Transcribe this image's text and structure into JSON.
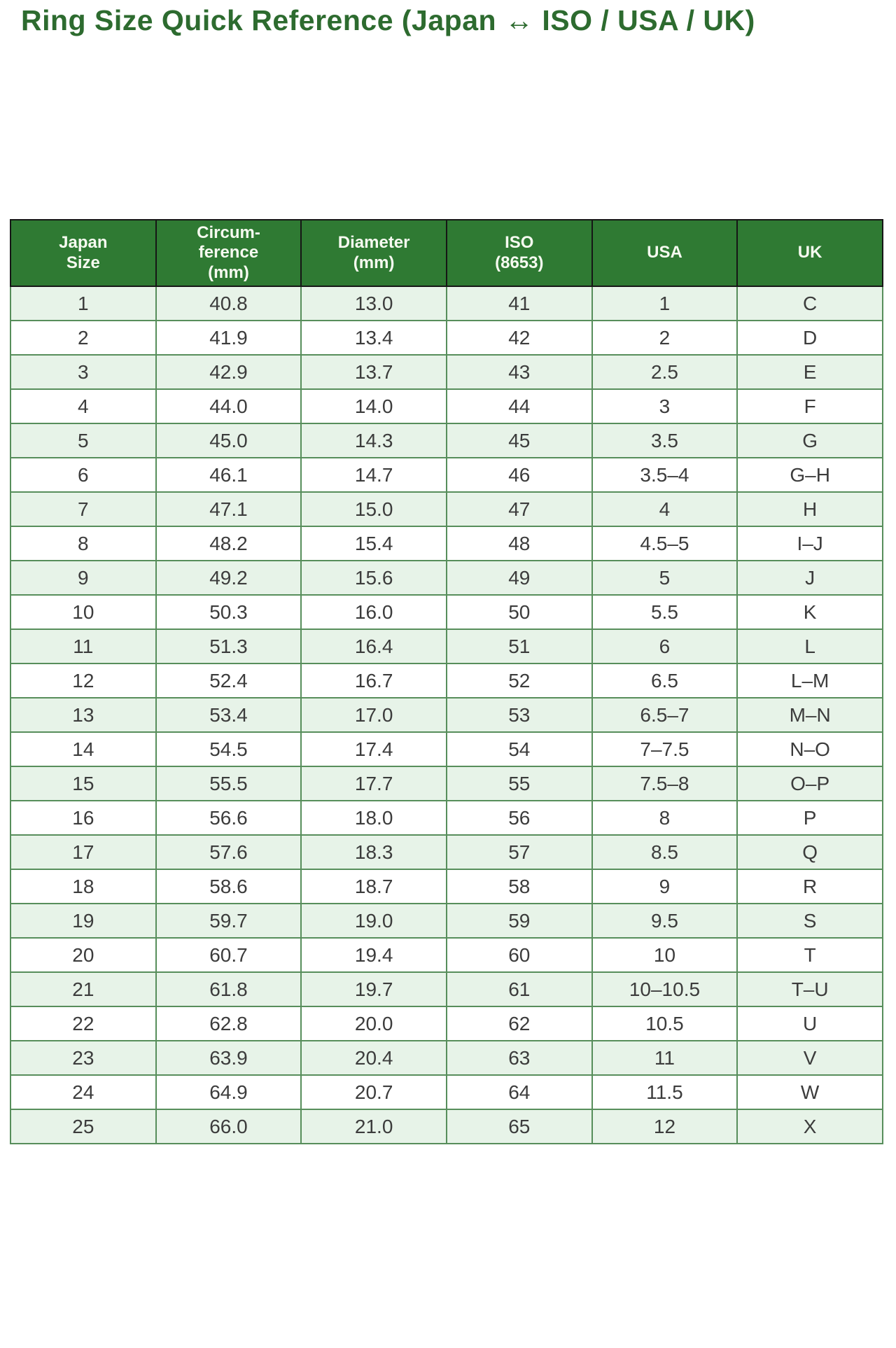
{
  "page": {
    "title": "Ring Size Quick Reference (Japan ↔ ISO / USA / UK)"
  },
  "colors": {
    "title_green": "#2d6b2f",
    "header_background": "#2f7a33",
    "header_text": "#f6faf0",
    "header_border": "#161616",
    "grid_border": "#578e5b",
    "row_alt_background": "#e7f3e8",
    "row_background": "#ffffff",
    "cell_text": "#3c3c3c",
    "page_background": "#ffffff"
  },
  "table": {
    "columns": [
      "Japan\nSize",
      "Circum-\nference\n(mm)",
      "Diameter\n(mm)",
      "ISO\n(8653)",
      "USA",
      "UK"
    ],
    "rows": [
      [
        "1",
        "40.8",
        "13.0",
        "41",
        "1",
        "C"
      ],
      [
        "2",
        "41.9",
        "13.4",
        "42",
        "2",
        "D"
      ],
      [
        "3",
        "42.9",
        "13.7",
        "43",
        "2.5",
        "E"
      ],
      [
        "4",
        "44.0",
        "14.0",
        "44",
        "3",
        "F"
      ],
      [
        "5",
        "45.0",
        "14.3",
        "45",
        "3.5",
        "G"
      ],
      [
        "6",
        "46.1",
        "14.7",
        "46",
        "3.5–4",
        "G–H"
      ],
      [
        "7",
        "47.1",
        "15.0",
        "47",
        "4",
        "H"
      ],
      [
        "8",
        "48.2",
        "15.4",
        "48",
        "4.5–5",
        "I–J"
      ],
      [
        "9",
        "49.2",
        "15.6",
        "49",
        "5",
        "J"
      ],
      [
        "10",
        "50.3",
        "16.0",
        "50",
        "5.5",
        "K"
      ],
      [
        "11",
        "51.3",
        "16.4",
        "51",
        "6",
        "L"
      ],
      [
        "12",
        "52.4",
        "16.7",
        "52",
        "6.5",
        "L–M"
      ],
      [
        "13",
        "53.4",
        "17.0",
        "53",
        "6.5–7",
        "M–N"
      ],
      [
        "14",
        "54.5",
        "17.4",
        "54",
        "7–7.5",
        "N–O"
      ],
      [
        "15",
        "55.5",
        "17.7",
        "55",
        "7.5–8",
        "O–P"
      ],
      [
        "16",
        "56.6",
        "18.0",
        "56",
        "8",
        "P"
      ],
      [
        "17",
        "57.6",
        "18.3",
        "57",
        "8.5",
        "Q"
      ],
      [
        "18",
        "58.6",
        "18.7",
        "58",
        "9",
        "R"
      ],
      [
        "19",
        "59.7",
        "19.0",
        "59",
        "9.5",
        "S"
      ],
      [
        "20",
        "60.7",
        "19.4",
        "60",
        "10",
        "T"
      ],
      [
        "21",
        "61.8",
        "19.7",
        "61",
        "10–10.5",
        "T–U"
      ],
      [
        "22",
        "62.8",
        "20.0",
        "62",
        "10.5",
        "U"
      ],
      [
        "23",
        "63.9",
        "20.4",
        "63",
        "11",
        "V"
      ],
      [
        "24",
        "64.9",
        "20.7",
        "64",
        "11.5",
        "W"
      ],
      [
        "25",
        "66.0",
        "21.0",
        "65",
        "12",
        "X"
      ]
    ]
  },
  "chart_data": {
    "type": "table",
    "title": "Ring Size Quick Reference (Japan ↔ ISO / USA / UK)",
    "columns": [
      "Japan Size",
      "Circum-ference (mm)",
      "Diameter (mm)",
      "ISO (8653)",
      "USA",
      "UK"
    ],
    "rows": [
      [
        "1",
        "40.8",
        "13.0",
        "41",
        "1",
        "C"
      ],
      [
        "2",
        "41.9",
        "13.4",
        "42",
        "2",
        "D"
      ],
      [
        "3",
        "42.9",
        "13.7",
        "43",
        "2.5",
        "E"
      ],
      [
        "4",
        "44.0",
        "14.0",
        "44",
        "3",
        "F"
      ],
      [
        "5",
        "45.0",
        "14.3",
        "45",
        "3.5",
        "G"
      ],
      [
        "6",
        "46.1",
        "14.7",
        "46",
        "3.5–4",
        "G–H"
      ],
      [
        "7",
        "47.1",
        "15.0",
        "47",
        "4",
        "H"
      ],
      [
        "8",
        "48.2",
        "15.4",
        "48",
        "4.5–5",
        "I–J"
      ],
      [
        "9",
        "49.2",
        "15.6",
        "49",
        "5",
        "J"
      ],
      [
        "10",
        "50.3",
        "16.0",
        "50",
        "5.5",
        "K"
      ],
      [
        "11",
        "51.3",
        "16.4",
        "51",
        "6",
        "L"
      ],
      [
        "12",
        "52.4",
        "16.7",
        "52",
        "6.5",
        "L–M"
      ],
      [
        "13",
        "53.4",
        "17.0",
        "53",
        "6.5–7",
        "M–N"
      ],
      [
        "14",
        "54.5",
        "17.4",
        "54",
        "7–7.5",
        "N–O"
      ],
      [
        "15",
        "55.5",
        "17.7",
        "55",
        "7.5–8",
        "O–P"
      ],
      [
        "16",
        "56.6",
        "18.0",
        "56",
        "8",
        "P"
      ],
      [
        "17",
        "57.6",
        "18.3",
        "57",
        "8.5",
        "Q"
      ],
      [
        "18",
        "58.6",
        "18.7",
        "58",
        "9",
        "R"
      ],
      [
        "19",
        "59.7",
        "19.0",
        "59",
        "9.5",
        "S"
      ],
      [
        "20",
        "60.7",
        "19.4",
        "60",
        "10",
        "T"
      ],
      [
        "21",
        "61.8",
        "19.7",
        "61",
        "10–10.5",
        "T–U"
      ],
      [
        "22",
        "62.8",
        "20.0",
        "62",
        "10.5",
        "U"
      ],
      [
        "23",
        "63.9",
        "20.4",
        "63",
        "11",
        "V"
      ],
      [
        "24",
        "64.9",
        "20.7",
        "64",
        "11.5",
        "W"
      ],
      [
        "25",
        "66.0",
        "21.0",
        "65",
        "12",
        "X"
      ]
    ]
  }
}
